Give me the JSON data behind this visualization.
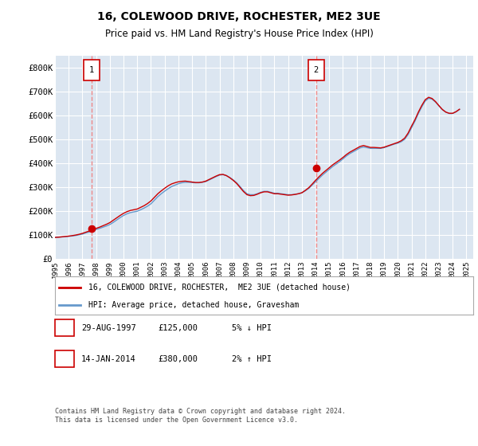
{
  "title": "16, COLEWOOD DRIVE, ROCHESTER, ME2 3UE",
  "subtitle": "Price paid vs. HM Land Registry's House Price Index (HPI)",
  "legend_line1": "16, COLEWOOD DRIVE, ROCHESTER,  ME2 3UE (detached house)",
  "legend_line2": "HPI: Average price, detached house, Gravesham",
  "annotation1_label": "1",
  "annotation1_date": "29-AUG-1997",
  "annotation1_price": "£125,000",
  "annotation1_hpi": "5% ↓ HPI",
  "annotation1_year": 1997.65,
  "annotation1_value": 125000,
  "annotation2_label": "2",
  "annotation2_date": "14-JAN-2014",
  "annotation2_price": "£380,000",
  "annotation2_hpi": "2% ↑ HPI",
  "annotation2_year": 2014.04,
  "annotation2_value": 380000,
  "ylim": [
    0,
    850000
  ],
  "xlim_start": 1995,
  "xlim_end": 2025.5,
  "plot_bg_color": "#dce6f1",
  "grid_color": "#ffffff",
  "sale_line_color": "#cc0000",
  "hpi_line_color": "#6699cc",
  "dashed_line_color": "#ee8888",
  "footer": "Contains HM Land Registry data © Crown copyright and database right 2024.\nThis data is licensed under the Open Government Licence v3.0.",
  "ytick_labels": [
    "£0",
    "£100K",
    "£200K",
    "£300K",
    "£400K",
    "£500K",
    "£600K",
    "£700K",
    "£800K"
  ],
  "ytick_values": [
    0,
    100000,
    200000,
    300000,
    400000,
    500000,
    600000,
    700000,
    800000
  ],
  "xtick_years": [
    1995,
    1996,
    1997,
    1998,
    1999,
    2000,
    2001,
    2002,
    2003,
    2004,
    2005,
    2006,
    2007,
    2008,
    2009,
    2010,
    2011,
    2012,
    2013,
    2014,
    2015,
    2016,
    2017,
    2018,
    2019,
    2020,
    2021,
    2022,
    2023,
    2024,
    2025
  ],
  "hpi_data_x": [
    1995.0,
    1995.25,
    1995.5,
    1995.75,
    1996.0,
    1996.25,
    1996.5,
    1996.75,
    1997.0,
    1997.25,
    1997.5,
    1997.75,
    1998.0,
    1998.25,
    1998.5,
    1998.75,
    1999.0,
    1999.25,
    1999.5,
    1999.75,
    2000.0,
    2000.25,
    2000.5,
    2000.75,
    2001.0,
    2001.25,
    2001.5,
    2001.75,
    2002.0,
    2002.25,
    2002.5,
    2002.75,
    2003.0,
    2003.25,
    2003.5,
    2003.75,
    2004.0,
    2004.25,
    2004.5,
    2004.75,
    2005.0,
    2005.25,
    2005.5,
    2005.75,
    2006.0,
    2006.25,
    2006.5,
    2006.75,
    2007.0,
    2007.25,
    2007.5,
    2007.75,
    2008.0,
    2008.25,
    2008.5,
    2008.75,
    2009.0,
    2009.25,
    2009.5,
    2009.75,
    2010.0,
    2010.25,
    2010.5,
    2010.75,
    2011.0,
    2011.25,
    2011.5,
    2011.75,
    2012.0,
    2012.25,
    2012.5,
    2012.75,
    2013.0,
    2013.25,
    2013.5,
    2013.75,
    2014.0,
    2014.25,
    2014.5,
    2014.75,
    2015.0,
    2015.25,
    2015.5,
    2015.75,
    2016.0,
    2016.25,
    2016.5,
    2016.75,
    2017.0,
    2017.25,
    2017.5,
    2017.75,
    2018.0,
    2018.25,
    2018.5,
    2018.75,
    2019.0,
    2019.25,
    2019.5,
    2019.75,
    2020.0,
    2020.25,
    2020.5,
    2020.75,
    2021.0,
    2021.25,
    2021.5,
    2021.75,
    2022.0,
    2022.25,
    2022.5,
    2022.75,
    2023.0,
    2023.25,
    2023.5,
    2023.75,
    2024.0,
    2024.25,
    2024.5
  ],
  "hpi_data_y": [
    89000,
    90000,
    91000,
    92000,
    93500,
    95000,
    97000,
    100000,
    103000,
    108000,
    112000,
    117000,
    122000,
    127000,
    132000,
    137000,
    143000,
    152000,
    162000,
    172000,
    181000,
    188000,
    193000,
    196000,
    199000,
    205000,
    212000,
    220000,
    230000,
    245000,
    260000,
    272000,
    283000,
    293000,
    302000,
    308000,
    314000,
    318000,
    320000,
    320000,
    319000,
    318000,
    318000,
    320000,
    323000,
    330000,
    337000,
    344000,
    350000,
    352000,
    348000,
    340000,
    330000,
    318000,
    302000,
    285000,
    272000,
    268000,
    268000,
    272000,
    278000,
    282000,
    282000,
    278000,
    274000,
    274000,
    272000,
    270000,
    268000,
    268000,
    270000,
    272000,
    276000,
    284000,
    294000,
    308000,
    322000,
    336000,
    350000,
    362000,
    374000,
    386000,
    396000,
    406000,
    418000,
    430000,
    440000,
    448000,
    456000,
    464000,
    468000,
    465000,
    462000,
    462000,
    462000,
    462000,
    465000,
    470000,
    475000,
    480000,
    484000,
    490000,
    500000,
    520000,
    548000,
    576000,
    608000,
    636000,
    660000,
    672000,
    668000,
    656000,
    640000,
    624000,
    614000,
    608000,
    608000,
    615000,
    625000
  ],
  "sale_data_x": [
    1995.0,
    1995.25,
    1995.5,
    1995.75,
    1996.0,
    1996.25,
    1996.5,
    1996.75,
    1997.0,
    1997.25,
    1997.5,
    1997.75,
    1998.0,
    1998.25,
    1998.5,
    1998.75,
    1999.0,
    1999.25,
    1999.5,
    1999.75,
    2000.0,
    2000.25,
    2000.5,
    2000.75,
    2001.0,
    2001.25,
    2001.5,
    2001.75,
    2002.0,
    2002.25,
    2002.5,
    2002.75,
    2003.0,
    2003.25,
    2003.5,
    2003.75,
    2004.0,
    2004.25,
    2004.5,
    2004.75,
    2005.0,
    2005.25,
    2005.5,
    2005.75,
    2006.0,
    2006.25,
    2006.5,
    2006.75,
    2007.0,
    2007.25,
    2007.5,
    2007.75,
    2008.0,
    2008.25,
    2008.5,
    2008.75,
    2009.0,
    2009.25,
    2009.5,
    2009.75,
    2010.0,
    2010.25,
    2010.5,
    2010.75,
    2011.0,
    2011.25,
    2011.5,
    2011.75,
    2012.0,
    2012.25,
    2012.5,
    2012.75,
    2013.0,
    2013.25,
    2013.5,
    2013.75,
    2014.0,
    2014.25,
    2014.5,
    2014.75,
    2015.0,
    2015.25,
    2015.5,
    2015.75,
    2016.0,
    2016.25,
    2016.5,
    2016.75,
    2017.0,
    2017.25,
    2017.5,
    2017.75,
    2018.0,
    2018.25,
    2018.5,
    2018.75,
    2019.0,
    2019.25,
    2019.5,
    2019.75,
    2020.0,
    2020.25,
    2020.5,
    2020.75,
    2021.0,
    2021.25,
    2021.5,
    2021.75,
    2022.0,
    2022.25,
    2022.5,
    2022.75,
    2023.0,
    2023.25,
    2023.5,
    2023.75,
    2024.0,
    2024.25,
    2024.5
  ],
  "sale_data_y": [
    89000,
    90000,
    91500,
    93000,
    94500,
    96500,
    99000,
    102000,
    106000,
    111000,
    116000,
    121000,
    127000,
    132000,
    138000,
    144000,
    151000,
    161000,
    171000,
    181000,
    190000,
    197000,
    202000,
    205000,
    208000,
    215000,
    222000,
    231000,
    242000,
    257000,
    272000,
    284000,
    295000,
    305000,
    313000,
    318000,
    322000,
    324000,
    325000,
    323000,
    321000,
    319000,
    319000,
    321000,
    325000,
    332000,
    339000,
    346000,
    352000,
    353000,
    348000,
    339000,
    328000,
    315000,
    298000,
    281000,
    268000,
    264000,
    265000,
    270000,
    276000,
    280000,
    280000,
    276000,
    272000,
    272000,
    270000,
    268000,
    266000,
    267000,
    269000,
    272000,
    276000,
    286000,
    297000,
    312000,
    328000,
    343000,
    357000,
    369000,
    381000,
    393000,
    403000,
    413000,
    424000,
    436000,
    446000,
    454000,
    462000,
    470000,
    474000,
    470000,
    466000,
    466000,
    465000,
    464000,
    467000,
    472000,
    477000,
    482000,
    487000,
    494000,
    505000,
    526000,
    555000,
    582000,
    614000,
    642000,
    666000,
    676000,
    671000,
    658000,
    641000,
    625000,
    614000,
    609000,
    609000,
    616000,
    626000
  ]
}
